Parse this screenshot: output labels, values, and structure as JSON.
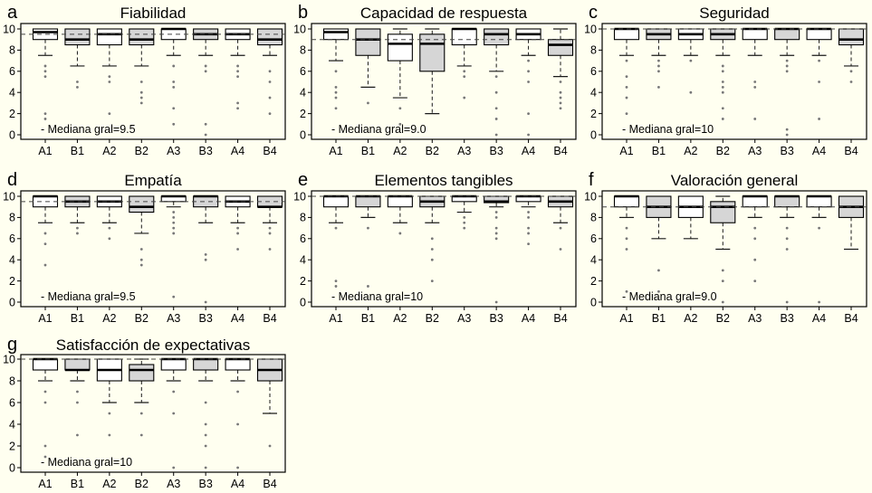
{
  "style": {
    "background": "#FFFFF0",
    "frame_color": "#000000",
    "box_fill_A": "#FFFFFF",
    "box_fill_B": "#D6D6D6",
    "box_stroke": "#000000",
    "median_color": "#000000",
    "whisker_color": "#1a1a1a",
    "outlier_color": "#777777",
    "reference_line_color": "#444444",
    "text_color": "#000000"
  },
  "chart_data": [
    {
      "type": "box",
      "panel_letter": "a",
      "title": "Fiabilidad",
      "annotation": "- Mediana gral=9.5",
      "reference_value": 9.5,
      "ylim": [
        0,
        10
      ],
      "yticks": [
        0,
        2,
        4,
        6,
        8,
        10
      ],
      "categories": [
        "A1",
        "B1",
        "A2",
        "B2",
        "A3",
        "B3",
        "A4",
        "B4"
      ],
      "series": [
        {
          "label": "A1",
          "group": "A",
          "q1": 9,
          "median": 9.7,
          "q3": 10,
          "whisker_low": 7.5,
          "whisker_high": 10,
          "outliers": [
            6.5,
            6,
            5.5,
            2,
            1.5
          ]
        },
        {
          "label": "B1",
          "group": "B",
          "q1": 8.5,
          "median": 9,
          "q3": 10,
          "whisker_low": 6.5,
          "whisker_high": 10,
          "outliers": [
            5,
            4.5
          ]
        },
        {
          "label": "A2",
          "group": "A",
          "q1": 8.5,
          "median": 9.5,
          "q3": 10,
          "whisker_low": 6.5,
          "whisker_high": 10,
          "outliers": [
            5.5,
            5,
            2
          ]
        },
        {
          "label": "B2",
          "group": "B",
          "q1": 8.5,
          "median": 9,
          "q3": 10,
          "whisker_low": 6.5,
          "whisker_high": 10,
          "outliers": [
            5,
            4,
            3.5,
            3
          ]
        },
        {
          "label": "A3",
          "group": "A",
          "q1": 9,
          "median": 10,
          "q3": 10,
          "whisker_low": 7.5,
          "whisker_high": 10,
          "outliers": [
            6.5,
            5,
            4.5,
            2.5,
            1
          ]
        },
        {
          "label": "B3",
          "group": "B",
          "q1": 9,
          "median": 9.5,
          "q3": 10,
          "whisker_low": 7.5,
          "whisker_high": 10,
          "outliers": [
            6.5,
            6,
            1,
            0
          ]
        },
        {
          "label": "A4",
          "group": "A",
          "q1": 9,
          "median": 9.5,
          "q3": 10,
          "whisker_low": 7.5,
          "whisker_high": 10,
          "outliers": [
            6.5,
            6,
            5.5,
            3,
            2.5
          ]
        },
        {
          "label": "B4",
          "group": "B",
          "q1": 8.5,
          "median": 9,
          "q3": 10,
          "whisker_low": 7.5,
          "whisker_high": 10,
          "outliers": [
            6,
            5,
            3.5,
            2
          ]
        }
      ]
    },
    {
      "type": "box",
      "panel_letter": "b",
      "title": "Capacidad de respuesta",
      "annotation": "- Mediana gral=9.0",
      "reference_value": 9.0,
      "ylim": [
        0,
        10
      ],
      "yticks": [
        0,
        2,
        4,
        6,
        8,
        10
      ],
      "categories": [
        "A1",
        "B1",
        "A2",
        "B2",
        "A3",
        "B3",
        "A4",
        "B4"
      ],
      "series": [
        {
          "label": "A1",
          "group": "A",
          "q1": 9,
          "median": 9.7,
          "q3": 10,
          "whisker_low": 7,
          "whisker_high": 10,
          "outliers": [
            6,
            4.5,
            4,
            3.5,
            2.5
          ]
        },
        {
          "label": "B1",
          "group": "B",
          "q1": 7.5,
          "median": 9,
          "q3": 10,
          "whisker_low": 4.5,
          "whisker_high": 10,
          "outliers": [
            3
          ]
        },
        {
          "label": "A2",
          "group": "A",
          "q1": 7,
          "median": 8.6,
          "q3": 9.5,
          "whisker_low": 3.5,
          "whisker_high": 10,
          "outliers": [
            2.5,
            1
          ]
        },
        {
          "label": "B2",
          "group": "B",
          "q1": 6,
          "median": 8.6,
          "q3": 9.5,
          "whisker_low": 2,
          "whisker_high": 10,
          "outliers": []
        },
        {
          "label": "A3",
          "group": "A",
          "q1": 8.5,
          "median": 10,
          "q3": 10,
          "whisker_low": 6.5,
          "whisker_high": 10,
          "outliers": [
            6,
            5.5,
            3.5
          ]
        },
        {
          "label": "B3",
          "group": "B",
          "q1": 8.5,
          "median": 9.5,
          "q3": 10,
          "whisker_low": 6,
          "whisker_high": 10,
          "outliers": [
            5.5,
            4,
            2.5,
            1.5,
            0
          ]
        },
        {
          "label": "A4",
          "group": "A",
          "q1": 9,
          "median": 9.5,
          "q3": 10,
          "whisker_low": 7.5,
          "whisker_high": 10,
          "outliers": [
            7,
            6,
            5,
            2,
            0
          ]
        },
        {
          "label": "B4",
          "group": "B",
          "q1": 7.5,
          "median": 8.5,
          "q3": 9,
          "whisker_low": 5.5,
          "whisker_high": 10,
          "outliers": [
            5,
            4,
            3.5,
            3,
            2.5
          ]
        }
      ]
    },
    {
      "type": "box",
      "panel_letter": "c",
      "title": "Seguridad",
      "annotation": "- Mediana gral=10",
      "reference_value": 10,
      "ylim": [
        0,
        10
      ],
      "yticks": [
        0,
        2,
        4,
        6,
        8,
        10
      ],
      "categories": [
        "A1",
        "B1",
        "A2",
        "B2",
        "A3",
        "B3",
        "A4",
        "B4"
      ],
      "series": [
        {
          "label": "A1",
          "group": "A",
          "q1": 9,
          "median": 10,
          "q3": 10,
          "whisker_low": 7.5,
          "whisker_high": 10,
          "outliers": [
            7,
            5.5,
            4.5,
            3.5,
            2
          ]
        },
        {
          "label": "B1",
          "group": "B",
          "q1": 9,
          "median": 9.5,
          "q3": 10,
          "whisker_low": 7.5,
          "whisker_high": 10,
          "outliers": [
            7,
            6.5,
            6,
            4.5
          ]
        },
        {
          "label": "A2",
          "group": "A",
          "q1": 9,
          "median": 9.5,
          "q3": 10,
          "whisker_low": 7.5,
          "whisker_high": 10,
          "outliers": [
            7,
            4
          ]
        },
        {
          "label": "B2",
          "group": "B",
          "q1": 9,
          "median": 9.5,
          "q3": 10,
          "whisker_low": 7.5,
          "whisker_high": 10,
          "outliers": [
            6.5,
            6,
            5,
            4.5,
            4,
            2.5,
            1.5
          ]
        },
        {
          "label": "A3",
          "group": "A",
          "q1": 9,
          "median": 10,
          "q3": 10,
          "whisker_low": 7.5,
          "whisker_high": 10,
          "outliers": [
            5,
            4.5,
            1.5
          ]
        },
        {
          "label": "B3",
          "group": "B",
          "q1": 9,
          "median": 10,
          "q3": 10,
          "whisker_low": 7.5,
          "whisker_high": 10,
          "outliers": [
            7,
            6.5,
            6,
            0.5,
            0
          ]
        },
        {
          "label": "A4",
          "group": "A",
          "q1": 9,
          "median": 10,
          "q3": 10,
          "whisker_low": 7.5,
          "whisker_high": 10,
          "outliers": [
            7,
            5,
            1.5
          ]
        },
        {
          "label": "B4",
          "group": "B",
          "q1": 8.5,
          "median": 9,
          "q3": 10,
          "whisker_low": 6.5,
          "whisker_high": 10,
          "outliers": [
            6,
            5
          ]
        }
      ]
    },
    {
      "type": "box",
      "panel_letter": "d",
      "title": "Empatía",
      "annotation": "- Mediana gral=9.5",
      "reference_value": 9.5,
      "ylim": [
        0,
        10
      ],
      "yticks": [
        0,
        2,
        4,
        6,
        8,
        10
      ],
      "categories": [
        "A1",
        "B1",
        "A2",
        "B2",
        "A3",
        "B3",
        "A4",
        "B4"
      ],
      "series": [
        {
          "label": "A1",
          "group": "A",
          "q1": 9,
          "median": 10,
          "q3": 10,
          "whisker_low": 7.5,
          "whisker_high": 10,
          "outliers": [
            6.5,
            5.5,
            3.5
          ]
        },
        {
          "label": "B1",
          "group": "B",
          "q1": 9,
          "median": 9.5,
          "q3": 10,
          "whisker_low": 7.5,
          "whisker_high": 10,
          "outliers": [
            7,
            6.5
          ]
        },
        {
          "label": "A2",
          "group": "A",
          "q1": 9,
          "median": 9.5,
          "q3": 10,
          "whisker_low": 7.5,
          "whisker_high": 10,
          "outliers": [
            7,
            6
          ]
        },
        {
          "label": "B2",
          "group": "B",
          "q1": 8.5,
          "median": 9,
          "q3": 10,
          "whisker_low": 6.5,
          "whisker_high": 10,
          "outliers": [
            5,
            4,
            3.5
          ]
        },
        {
          "label": "A3",
          "group": "A",
          "q1": 9.5,
          "median": 10,
          "q3": 10,
          "whisker_low": 9,
          "whisker_high": 10,
          "outliers": [
            8.5,
            8,
            7.5,
            7,
            6.5,
            0.5
          ]
        },
        {
          "label": "B3",
          "group": "B",
          "q1": 9,
          "median": 10,
          "q3": 10,
          "whisker_low": 7.5,
          "whisker_high": 10,
          "outliers": [
            4.5,
            4,
            0
          ]
        },
        {
          "label": "A4",
          "group": "A",
          "q1": 9,
          "median": 9.5,
          "q3": 10,
          "whisker_low": 7.5,
          "whisker_high": 10,
          "outliers": [
            7,
            6.5,
            5
          ]
        },
        {
          "label": "B4",
          "group": "B",
          "q1": 9,
          "median": 9,
          "q3": 10,
          "whisker_low": 7.5,
          "whisker_high": 10,
          "outliers": [
            7,
            6.5,
            5
          ]
        }
      ]
    },
    {
      "type": "box",
      "panel_letter": "e",
      "title": "Elementos tangibles",
      "annotation": "- Mediana gral=10",
      "reference_value": 10,
      "ylim": [
        0,
        10
      ],
      "yticks": [
        0,
        2,
        4,
        6,
        8,
        10
      ],
      "categories": [
        "A1",
        "B1",
        "A2",
        "B2",
        "A3",
        "B3",
        "A4",
        "B4"
      ],
      "series": [
        {
          "label": "A1",
          "group": "A",
          "q1": 9,
          "median": 10,
          "q3": 10,
          "whisker_low": 7.5,
          "whisker_high": 10,
          "outliers": [
            7,
            2,
            1.5
          ]
        },
        {
          "label": "B1",
          "group": "B",
          "q1": 9,
          "median": 10,
          "q3": 10,
          "whisker_low": 8,
          "whisker_high": 10,
          "outliers": [
            7,
            1.5
          ]
        },
        {
          "label": "A2",
          "group": "A",
          "q1": 9,
          "median": 10,
          "q3": 10,
          "whisker_low": 7.5,
          "whisker_high": 10,
          "outliers": [
            6.5
          ]
        },
        {
          "label": "B2",
          "group": "B",
          "q1": 9,
          "median": 9.5,
          "q3": 10,
          "whisker_low": 7.5,
          "whisker_high": 10,
          "outliers": [
            6,
            5,
            4,
            2
          ]
        },
        {
          "label": "A3",
          "group": "A",
          "q1": 9.5,
          "median": 10,
          "q3": 10,
          "whisker_low": 8.5,
          "whisker_high": 10,
          "outliers": [
            8,
            7.5,
            7
          ]
        },
        {
          "label": "B3",
          "group": "B",
          "q1": 9.4,
          "median": 9.5,
          "q3": 10,
          "whisker_low": 9,
          "whisker_high": 10,
          "outliers": [
            8.5,
            8,
            7,
            6.5,
            6,
            0
          ]
        },
        {
          "label": "A4",
          "group": "A",
          "q1": 9.5,
          "median": 10,
          "q3": 10,
          "whisker_low": 9,
          "whisker_high": 10,
          "outliers": [
            8.5,
            8,
            7,
            6.5,
            5.5
          ]
        },
        {
          "label": "B4",
          "group": "B",
          "q1": 9,
          "median": 9.5,
          "q3": 10,
          "whisker_low": 7.5,
          "whisker_high": 10,
          "outliers": [
            7,
            5
          ]
        }
      ]
    },
    {
      "type": "box",
      "panel_letter": "f",
      "title": "Valoración general",
      "annotation": "- Mediana gral=9.0",
      "reference_value": 9.0,
      "ylim": [
        0,
        10
      ],
      "yticks": [
        0,
        2,
        4,
        6,
        8,
        10
      ],
      "categories": [
        "A1",
        "B1",
        "A2",
        "B2",
        "A3",
        "B3",
        "A4",
        "B4"
      ],
      "series": [
        {
          "label": "A1",
          "group": "A",
          "q1": 9,
          "median": 10,
          "q3": 10,
          "whisker_low": 8,
          "whisker_high": 10,
          "outliers": [
            7,
            6,
            5,
            1
          ]
        },
        {
          "label": "B1",
          "group": "B",
          "q1": 8,
          "median": 9,
          "q3": 10,
          "whisker_low": 6,
          "whisker_high": 10,
          "outliers": [
            3,
            1
          ]
        },
        {
          "label": "A2",
          "group": "A",
          "q1": 8,
          "median": 9,
          "q3": 10,
          "whisker_low": 6,
          "whisker_high": 10,
          "outliers": []
        },
        {
          "label": "B2",
          "group": "B",
          "q1": 7.5,
          "median": 9,
          "q3": 9.5,
          "whisker_low": 5,
          "whisker_high": 10,
          "outliers": [
            3,
            2,
            0
          ]
        },
        {
          "label": "A3",
          "group": "A",
          "q1": 9,
          "median": 10,
          "q3": 10,
          "whisker_low": 8,
          "whisker_high": 10,
          "outliers": [
            7,
            6,
            4,
            2
          ]
        },
        {
          "label": "B3",
          "group": "B",
          "q1": 9,
          "median": 10,
          "q3": 10,
          "whisker_low": 8,
          "whisker_high": 10,
          "outliers": [
            7,
            6,
            5,
            0
          ]
        },
        {
          "label": "A4",
          "group": "A",
          "q1": 9,
          "median": 10,
          "q3": 10,
          "whisker_low": 8,
          "whisker_high": 10,
          "outliers": [
            7,
            0
          ]
        },
        {
          "label": "B4",
          "group": "B",
          "q1": 8,
          "median": 9,
          "q3": 10,
          "whisker_low": 5,
          "whisker_high": 10,
          "outliers": []
        }
      ]
    },
    {
      "type": "box",
      "panel_letter": "g",
      "title": "Satisfacción de expectativas",
      "annotation": "- Mediana gral=10",
      "reference_value": 10,
      "ylim": [
        0,
        10
      ],
      "yticks": [
        0,
        2,
        4,
        6,
        8,
        10
      ],
      "categories": [
        "A1",
        "B1",
        "A2",
        "B2",
        "A3",
        "B3",
        "A4",
        "B4"
      ],
      "series": [
        {
          "label": "A1",
          "group": "A",
          "q1": 9,
          "median": 10,
          "q3": 10,
          "whisker_low": 8,
          "whisker_high": 10,
          "outliers": [
            7,
            6,
            2,
            1
          ]
        },
        {
          "label": "B1",
          "group": "B",
          "q1": 9,
          "median": 9,
          "q3": 10,
          "whisker_low": 8,
          "whisker_high": 10,
          "outliers": [
            7,
            6,
            3
          ]
        },
        {
          "label": "A2",
          "group": "A",
          "q1": 8,
          "median": 9,
          "q3": 10,
          "whisker_low": 6,
          "whisker_high": 10,
          "outliers": [
            5,
            3
          ]
        },
        {
          "label": "B2",
          "group": "B",
          "q1": 8,
          "median": 9,
          "q3": 9.5,
          "whisker_low": 6,
          "whisker_high": 10,
          "outliers": [
            5,
            3
          ]
        },
        {
          "label": "A3",
          "group": "A",
          "q1": 9,
          "median": 10,
          "q3": 10,
          "whisker_low": 8,
          "whisker_high": 10,
          "outliers": [
            7,
            5,
            0
          ]
        },
        {
          "label": "B3",
          "group": "B",
          "q1": 9,
          "median": 10,
          "q3": 10,
          "whisker_low": 8,
          "whisker_high": 10,
          "outliers": [
            6,
            4,
            3,
            2,
            0
          ]
        },
        {
          "label": "A4",
          "group": "A",
          "q1": 9,
          "median": 10,
          "q3": 10,
          "whisker_low": 8,
          "whisker_high": 10,
          "outliers": [
            7,
            4,
            0
          ]
        },
        {
          "label": "B4",
          "group": "B",
          "q1": 8,
          "median": 9,
          "q3": 10,
          "whisker_low": 5,
          "whisker_high": 10,
          "outliers": [
            2
          ]
        }
      ]
    }
  ]
}
